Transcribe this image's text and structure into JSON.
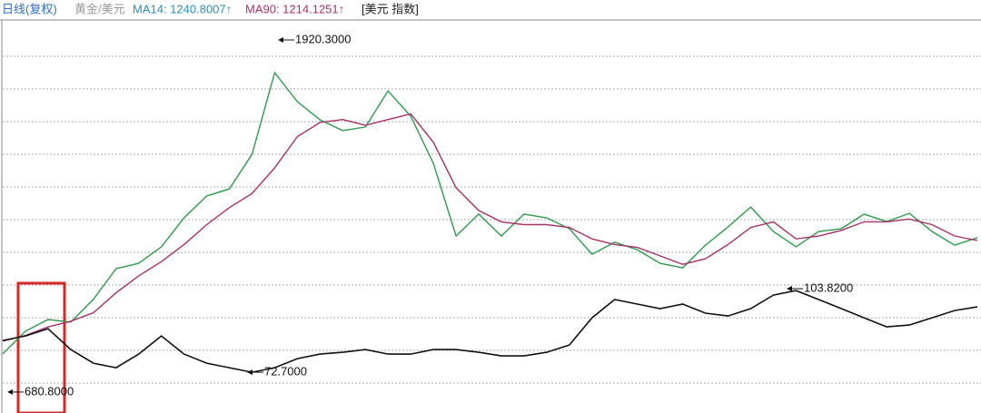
{
  "chart_data": {
    "type": "line",
    "header": [
      "日线(复权)",
      "黄金/美元",
      "MA14: 1240.8007↑",
      "MA90: 1214.1251↑",
      "[美元 指数]"
    ],
    "header_colors": [
      "#2f6fc0",
      "#999999",
      "#2a8fb8",
      "#b0306a",
      "#222222"
    ],
    "ylim": [
      623,
      1997
    ],
    "y2lim": [
      59.2,
      204.6
    ],
    "series": [
      {
        "name": "黄金/美元",
        "color": "#2e9b4a",
        "values": [
          815,
          895,
          936,
          927,
          1007,
          1115,
          1134,
          1192,
          1294,
          1371,
          1396,
          1518,
          1805,
          1703,
          1639,
          1601,
          1614,
          1741,
          1652,
          1486,
          1230,
          1307,
          1230,
          1307,
          1294,
          1256,
          1166,
          1208,
          1182,
          1134,
          1118,
          1198,
          1262,
          1332,
          1246,
          1192,
          1246,
          1256,
          1307,
          1281,
          1310,
          1246,
          1198,
          1224
        ]
      },
      {
        "name": "MA90",
        "color": "#a8306a",
        "values": [
          860,
          880,
          910,
          930,
          960,
          1030,
          1090,
          1140,
          1200,
          1270,
          1330,
          1380,
          1470,
          1580,
          1630,
          1640,
          1620,
          1640,
          1660,
          1560,
          1400,
          1320,
          1280,
          1270,
          1270,
          1260,
          1220,
          1200,
          1190,
          1160,
          1130,
          1150,
          1200,
          1260,
          1280,
          1220,
          1230,
          1250,
          1280,
          1280,
          1290,
          1270,
          1230,
          1214
        ]
      },
      {
        "name": "美元 指数",
        "color": "#111111",
        "axis": "y2",
        "values": [
          84.54,
          86.23,
          88.93,
          81.15,
          76.08,
          74.39,
          79.46,
          86.23,
          79.46,
          76.08,
          74.39,
          72.7,
          74.39,
          77.77,
          79.46,
          80.14,
          81.15,
          79.46,
          79.46,
          81.15,
          81.15,
          80.14,
          78.79,
          78.79,
          80.14,
          82.85,
          92.99,
          99.76,
          98.07,
          96.38,
          98.07,
          94.69,
          93.67,
          96.38,
          101.45,
          103.14,
          99.76,
          96.38,
          92.99,
          89.61,
          90.29,
          92.99,
          95.7,
          97.05
        ]
      }
    ],
    "annotations": [
      {
        "value": 1920.3,
        "label": "1920.3000"
      },
      {
        "value": 680.8,
        "label": "680.8000"
      },
      {
        "value": 72.7,
        "label": "72.7000",
        "axis": "y2"
      },
      {
        "value": 103.82,
        "label": "103.8200",
        "axis": "y2"
      }
    ]
  }
}
